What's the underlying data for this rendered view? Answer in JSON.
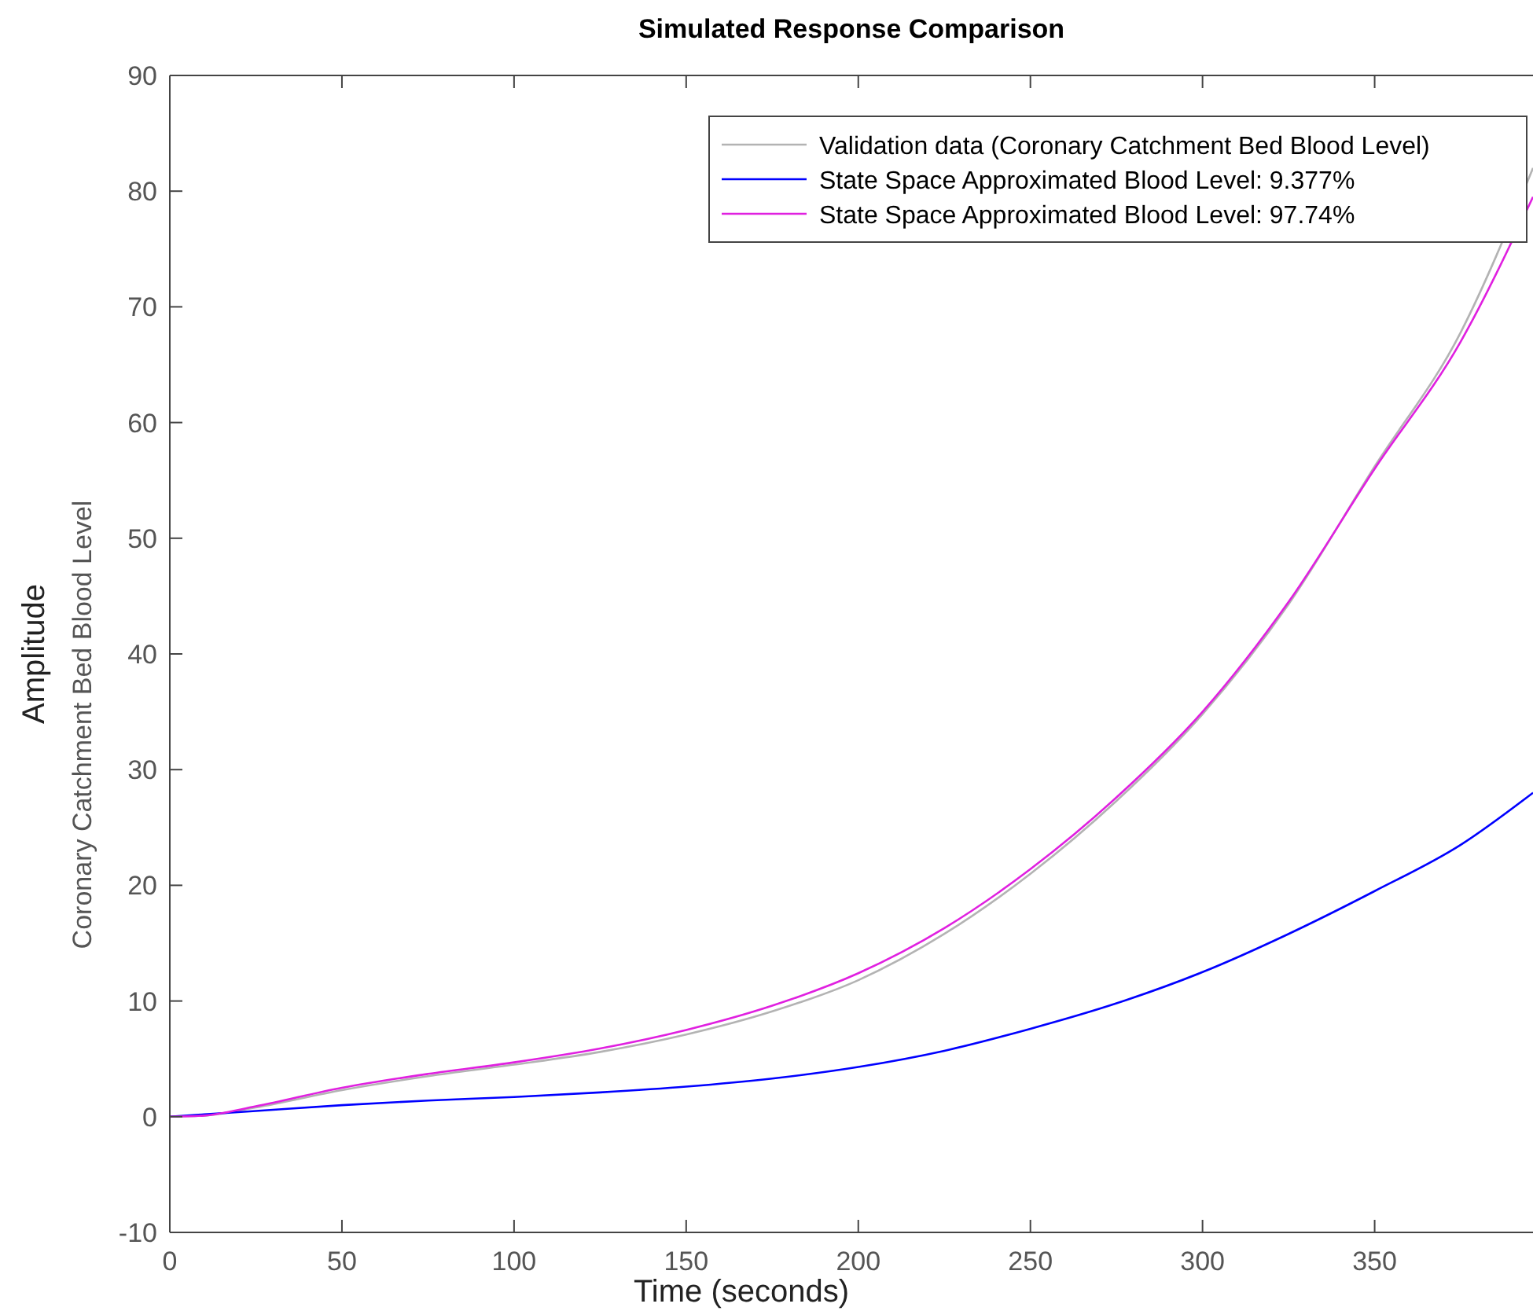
{
  "chart_data": {
    "type": "line",
    "title": "Simulated Response Comparison",
    "xlabel": "Time (seconds)",
    "ylabel": "Amplitude",
    "annotations": [
      "Coronary Catchment Bed Blood Level"
    ],
    "x": [
      0,
      10,
      25,
      50,
      75,
      100,
      125,
      150,
      175,
      200,
      225,
      250,
      275,
      300,
      325,
      350,
      375,
      396
    ],
    "series": [
      {
        "name": "Validation data (Coronary Catchment Bed Blood Level)",
        "color": "#b3b3b3",
        "values": [
          0,
          0.1,
          0.8,
          2.3,
          3.5,
          4.5,
          5.6,
          7.1,
          9.1,
          11.8,
          15.8,
          21,
          27.3,
          34.8,
          44.3,
          56.2,
          67.8,
          82
        ]
      },
      {
        "name": "State Space Approximated Blood Level: 9.377%",
        "color": "#0000ff",
        "values": [
          0,
          0.2,
          0.5,
          1.0,
          1.4,
          1.7,
          2.1,
          2.6,
          3.3,
          4.3,
          5.7,
          7.6,
          9.8,
          12.5,
          15.8,
          19.5,
          23.5,
          28
        ]
      },
      {
        "name": "State Space Approximated Blood Level: 97.74%",
        "color": "#e020e0",
        "values": [
          0,
          0.1,
          0.9,
          2.5,
          3.7,
          4.7,
          5.9,
          7.5,
          9.6,
          12.4,
          16.3,
          21.4,
          27.6,
          35,
          44.5,
          56,
          67,
          79.5
        ]
      }
    ],
    "xlim": [
      0,
      396
    ],
    "xticks": [
      0,
      50,
      100,
      150,
      200,
      250,
      300,
      350
    ],
    "ylim": [
      -10,
      90
    ],
    "yticks": [
      -10,
      0,
      10,
      20,
      30,
      40,
      50,
      60,
      70,
      80,
      90
    ],
    "legend": "top right",
    "grid": false
  }
}
